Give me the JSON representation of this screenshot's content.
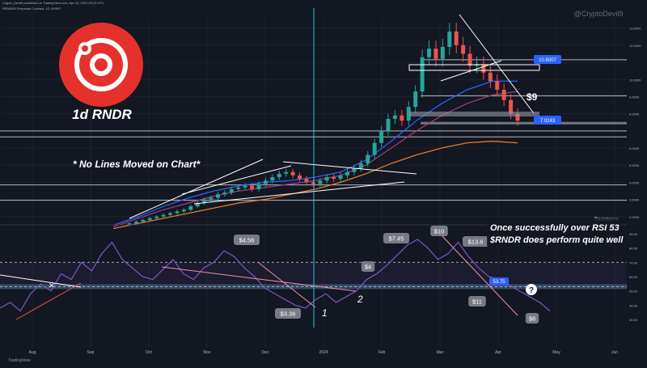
{
  "header": {
    "publisher": "Crypto_Devil9 published on TradingView.com, Apr 13, 2024 09:22 UTC",
    "symbol_line": "RENDER Perpetual Contract, 1D, BYBIT",
    "watermark": "@CryptoDevil9"
  },
  "logo": {
    "caption": "1d RNDR",
    "color": "#e5312b"
  },
  "annotations": {
    "note": "* No Lines Moved on Chart*",
    "rsi_note_1": "Once successfully over RSI 53",
    "rsi_note_2": "$RNDR does perform quite well",
    "target_label": "$9",
    "resistance_label": "Resistance",
    "question": "?",
    "wave_1": "1",
    "wave_2": "2"
  },
  "price_tags": [
    {
      "label": "10.6007",
      "value": 10.6
    },
    {
      "label": "7.0243",
      "value": 7.02
    }
  ],
  "rsi_callouts": [
    "$4.56",
    "$3.36",
    "$4",
    "$7.45",
    "$10",
    "$13.6",
    "$11",
    "$8"
  ],
  "footer": {
    "brand": "TradingView"
  },
  "colors": {
    "background": "#131722",
    "up": "#26a69a",
    "down": "#ef5350",
    "ma_fast": "#2962ff",
    "ma_mid": "#9c3b7e",
    "ma_slow": "#e37a2a",
    "rsi": "#7e57c2",
    "vertical_marker": "#26c6da"
  },
  "chart_data": [
    {
      "type": "candlestick",
      "title": "",
      "x_ticks": [
        "Aug",
        "Sep",
        "Oct",
        "Nov",
        "Dec",
        "2024",
        "Feb",
        "Mar",
        "Apr",
        "May",
        "Jun"
      ],
      "y_ticks": [
        13,
        12,
        11,
        10,
        9,
        8,
        7,
        6,
        5,
        4,
        3,
        2
      ],
      "ylim": [
        1.8,
        13.6
      ],
      "y_axis_labels": [
        "13.0000",
        "12.0000",
        "10.0000",
        "9.0000",
        "8.0000",
        "6.0000",
        "5.0000",
        "4.0000",
        "3.0000",
        "2.0000"
      ],
      "close_series": [
        1.6,
        1.7,
        1.8,
        1.9,
        2.0,
        2.1,
        2.2,
        2.3,
        2.4,
        2.6,
        2.8,
        3.0,
        3.1,
        3.3,
        3.4,
        3.6,
        3.7,
        3.8,
        3.6,
        3.9,
        4.1,
        4.3,
        4.5,
        4.6,
        4.4,
        4.2,
        4.0,
        3.9,
        4.1,
        4.3,
        4.2,
        4.4,
        4.6,
        4.8,
        5.1,
        5.6,
        6.3,
        7.0,
        7.7,
        7.9,
        7.6,
        8.4,
        9.3,
        11.3,
        11.8,
        11.2,
        11.9,
        12.8,
        12.0,
        11.5,
        10.8,
        10.9,
        10.4,
        9.9,
        9.4,
        8.8,
        8.0,
        7.6
      ],
      "horizontal_levels": [
        11.15,
        9.05,
        7.45,
        7.0,
        6.65,
        3.85,
        2.95
      ],
      "moving_averages": {
        "fast": [
          1.5,
          2.0,
          2.6,
          3.1,
          3.5,
          3.8,
          4.0,
          4.1,
          4.3,
          4.6,
          5.3,
          6.4,
          7.6,
          8.6,
          9.4,
          9.9,
          9.9
        ],
        "mid": [
          1.4,
          1.9,
          2.4,
          2.8,
          3.2,
          3.5,
          3.7,
          3.9,
          4.1,
          4.4,
          5.0,
          6.0,
          7.0,
          7.9,
          8.6,
          9.1,
          9.3
        ],
        "slow": [
          1.3,
          1.6,
          1.9,
          2.2,
          2.5,
          2.8,
          3.0,
          3.3,
          3.6,
          4.0,
          4.5,
          5.1,
          5.6,
          6.0,
          6.3,
          6.4,
          6.3
        ]
      }
    },
    {
      "type": "line",
      "title": "",
      "ylim": [
        25,
        95
      ],
      "y_axis_labels": [
        "90.00",
        "80.00",
        "70.00",
        "60.00",
        "50.00",
        "40.00",
        "30.00"
      ],
      "series": [
        {
          "values": [
            38,
            42,
            36,
            48,
            55,
            50,
            62,
            58,
            70,
            64,
            76,
            84,
            72,
            66,
            60,
            58,
            65,
            72,
            62,
            58,
            66,
            70,
            78,
            74,
            66,
            60,
            52,
            48,
            44,
            40,
            38,
            44,
            48,
            42,
            46,
            50,
            58,
            62,
            68,
            75,
            82,
            86,
            80,
            72,
            76,
            84,
            74,
            66,
            60,
            58,
            54,
            50,
            46,
            42,
            36
          ]
        }
      ],
      "levels": [
        53,
        70
      ]
    }
  ]
}
